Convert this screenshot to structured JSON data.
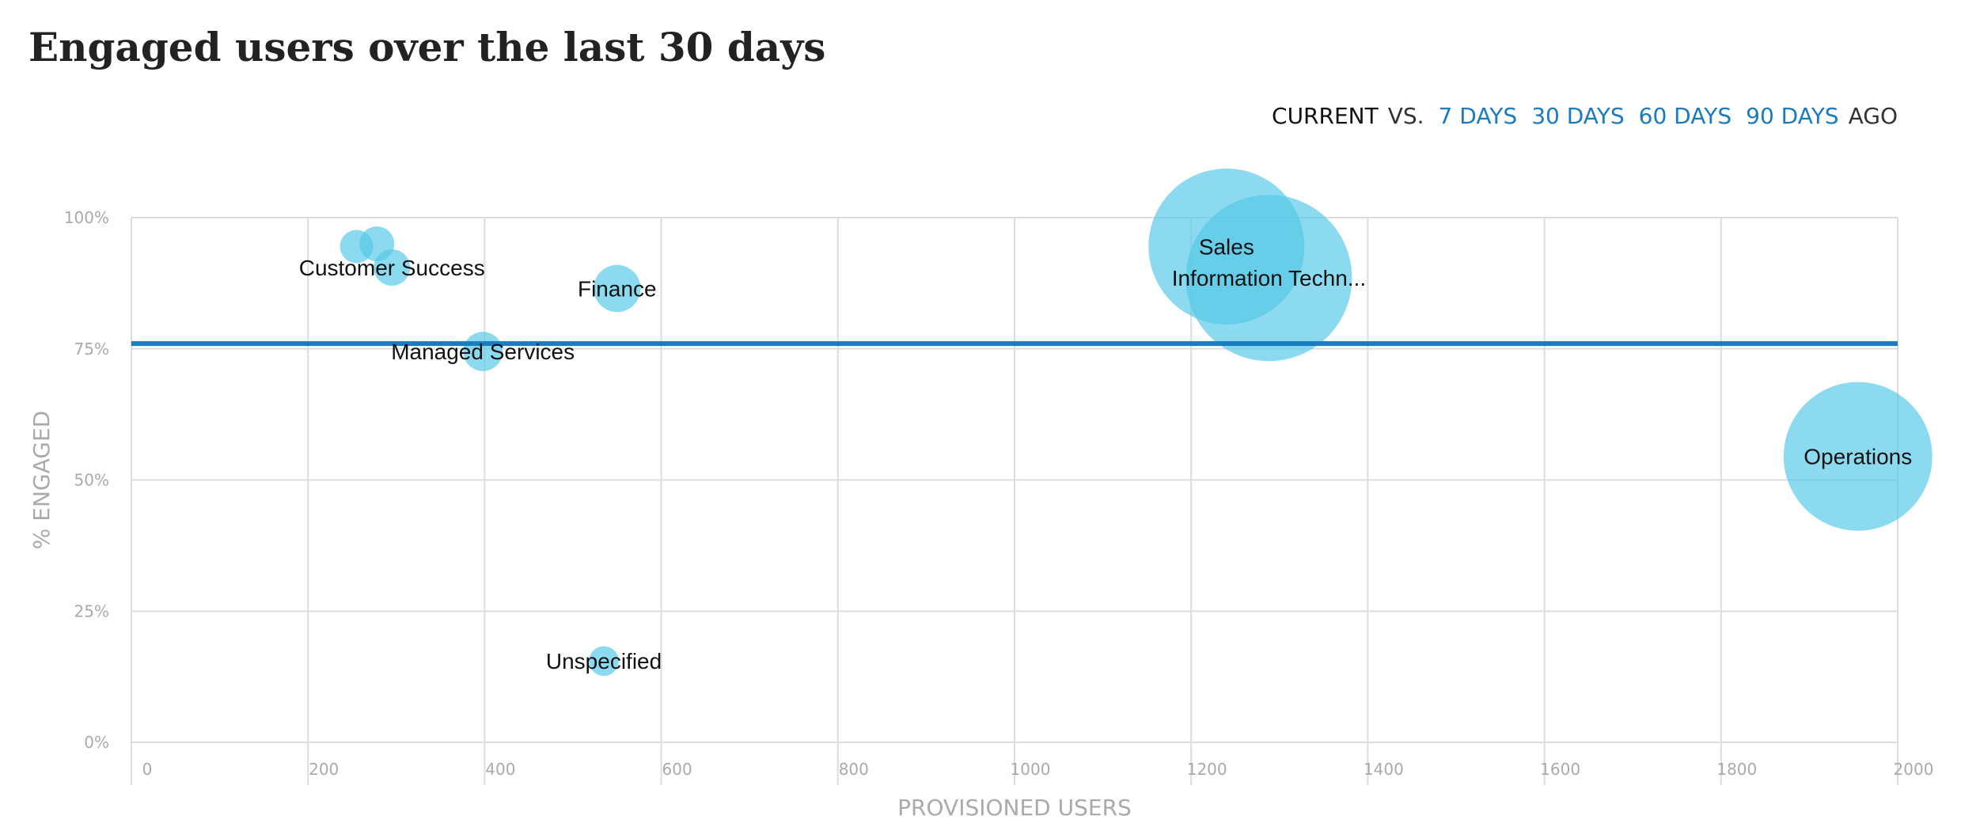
{
  "title": "Engaged users over the last 30 days",
  "comparison": {
    "current_label": "CURRENT",
    "vs_label": "VS.",
    "options": [
      "7 DAYS",
      "30 DAYS",
      "60 DAYS",
      "90 DAYS"
    ],
    "ago_label": "AGO"
  },
  "colors": {
    "bubble": "#56c8e8",
    "reference_line": "#1a7bbf",
    "link": "#1a7bbf",
    "grid": "#dddddd",
    "axis_text": "#aaaaaa"
  },
  "chart_data": {
    "type": "scatter",
    "xlabel": "PROVISIONED USERS",
    "ylabel": "% ENGAGED",
    "xlim": [
      0,
      2000
    ],
    "ylim": [
      0,
      100
    ],
    "x_ticks": [
      0,
      200,
      400,
      600,
      800,
      1000,
      1200,
      1400,
      1600,
      1800,
      2000
    ],
    "y_ticks": [
      0,
      25,
      50,
      75,
      100
    ],
    "y_tick_labels": [
      "0%",
      "25%",
      "50%",
      "75%",
      "100%"
    ],
    "reference_line_y": 76,
    "grid": true,
    "points": [
      {
        "x": 255,
        "y": 94.5,
        "size": 50,
        "label": ""
      },
      {
        "x": 278,
        "y": 95,
        "size": 55,
        "label": ""
      },
      {
        "x": 295,
        "y": 90.5,
        "size": 60,
        "label": "Customer Success"
      },
      {
        "x": 550,
        "y": 86.5,
        "size": 100,
        "label": "Finance"
      },
      {
        "x": 398,
        "y": 74.5,
        "size": 70,
        "label": "Managed Services"
      },
      {
        "x": 535,
        "y": 15.5,
        "size": 40,
        "label": "Unspecified"
      },
      {
        "x": 1240,
        "y": 94.5,
        "size": 1100,
        "label": "Sales"
      },
      {
        "x": 1288,
        "y": 88.5,
        "size": 1250,
        "label": "Information Techn..."
      },
      {
        "x": 1955,
        "y": 54.5,
        "size": 1000,
        "label": "Operations"
      }
    ]
  }
}
